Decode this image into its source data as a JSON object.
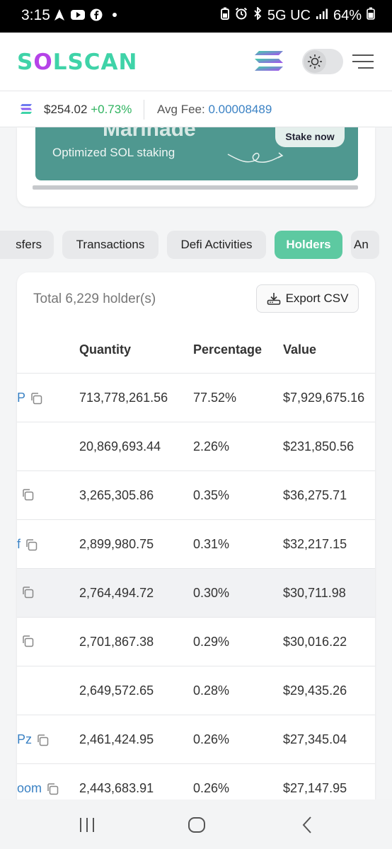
{
  "status_bar": {
    "time": "3:15",
    "network": "5G UC",
    "battery": "64%"
  },
  "header": {
    "logo": "SOLSCAN"
  },
  "price_bar": {
    "price": "$254.02",
    "change": "+0.73%",
    "fee_label": "Avg Fee:",
    "fee_value": "0.00008489"
  },
  "banner": {
    "partial_title": "Marinade",
    "subtitle": "Optimized SOL staking",
    "cta": "Stake now"
  },
  "tabs": [
    {
      "label": "Transfers",
      "visible_text": "sfers",
      "active": false
    },
    {
      "label": "Transactions",
      "active": false
    },
    {
      "label": "Defi Activities",
      "active": false
    },
    {
      "label": "Holders",
      "active": true
    },
    {
      "label": "Analytics",
      "visible_text": "An",
      "active": false
    }
  ],
  "holders": {
    "total_text": "Total 6,229 holder(s)",
    "export_label": "Export CSV",
    "columns": [
      "Quantity",
      "Percentage",
      "Value"
    ],
    "rows": [
      {
        "addr_tail": "P",
        "quantity": "713,778,261.56",
        "percentage": "77.52%",
        "value": "$7,929,675.16"
      },
      {
        "addr_tail": "",
        "quantity": "20,869,693.44",
        "percentage": "2.26%",
        "value": "$231,850.56"
      },
      {
        "addr_tail": "",
        "quantity": "3,265,305.86",
        "percentage": "0.35%",
        "value": "$36,275.71"
      },
      {
        "addr_tail": "f",
        "quantity": "2,899,980.75",
        "percentage": "0.31%",
        "value": "$32,217.15"
      },
      {
        "addr_tail": "",
        "quantity": "2,764,494.72",
        "percentage": "0.30%",
        "value": "$30,711.98"
      },
      {
        "addr_tail": "",
        "quantity": "2,701,867.38",
        "percentage": "0.29%",
        "value": "$30,016.22"
      },
      {
        "addr_tail": "",
        "quantity": "2,649,572.65",
        "percentage": "0.28%",
        "value": "$29,435.26"
      },
      {
        "addr_tail": "Pz",
        "quantity": "2,461,424.95",
        "percentage": "0.26%",
        "value": "$27,345.04"
      },
      {
        "addr_tail": "oom",
        "quantity": "2,443,683.91",
        "percentage": "0.26%",
        "value": "$27,147.95"
      }
    ]
  },
  "colors": {
    "brand": "#3fd3a8",
    "active_tab": "#5dc9a1",
    "link": "#3b82c4",
    "positive": "#2fb35f"
  }
}
